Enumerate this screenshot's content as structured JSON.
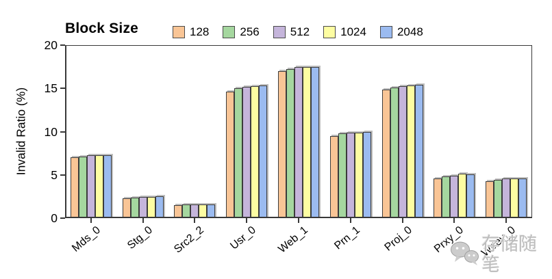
{
  "legend": {
    "title": "Block Size"
  },
  "watermark": {
    "text": "存储随笔",
    "icon": "wechat-logo"
  },
  "chart_data": {
    "type": "bar",
    "title": "",
    "xlabel": "",
    "ylabel": "Invalid Ratio (%)",
    "ylim": [
      0,
      20
    ],
    "yticks": [
      0,
      5,
      10,
      15,
      20
    ],
    "grid": false,
    "legend_position": "top",
    "axis_color": "#383838",
    "categories": [
      "Mds_0",
      "Stg_0",
      "Src2_2",
      "Usr_0",
      "Web_1",
      "Prn_1",
      "Proj_0",
      "Prxy_0",
      "Wdev_0"
    ],
    "series": [
      {
        "name": "128",
        "color": "#F9C596",
        "values": [
          7.0,
          2.3,
          1.5,
          14.6,
          17.0,
          9.5,
          14.9,
          4.6,
          4.3
        ]
      },
      {
        "name": "256",
        "color": "#A5D79F",
        "values": [
          7.15,
          2.4,
          1.55,
          15.0,
          17.25,
          9.8,
          15.1,
          4.8,
          4.45
        ]
      },
      {
        "name": "512",
        "color": "#C5B5DB",
        "values": [
          7.25,
          2.45,
          1.55,
          15.2,
          17.45,
          9.85,
          15.25,
          4.9,
          4.55
        ]
      },
      {
        "name": "1024",
        "color": "#FDFDA2",
        "values": [
          7.25,
          2.45,
          1.55,
          15.25,
          17.5,
          9.9,
          15.3,
          5.1,
          4.55
        ]
      },
      {
        "name": "2048",
        "color": "#9BBBF0",
        "values": [
          7.3,
          2.5,
          1.6,
          15.3,
          17.5,
          10.0,
          15.4,
          5.05,
          4.6
        ]
      }
    ]
  }
}
